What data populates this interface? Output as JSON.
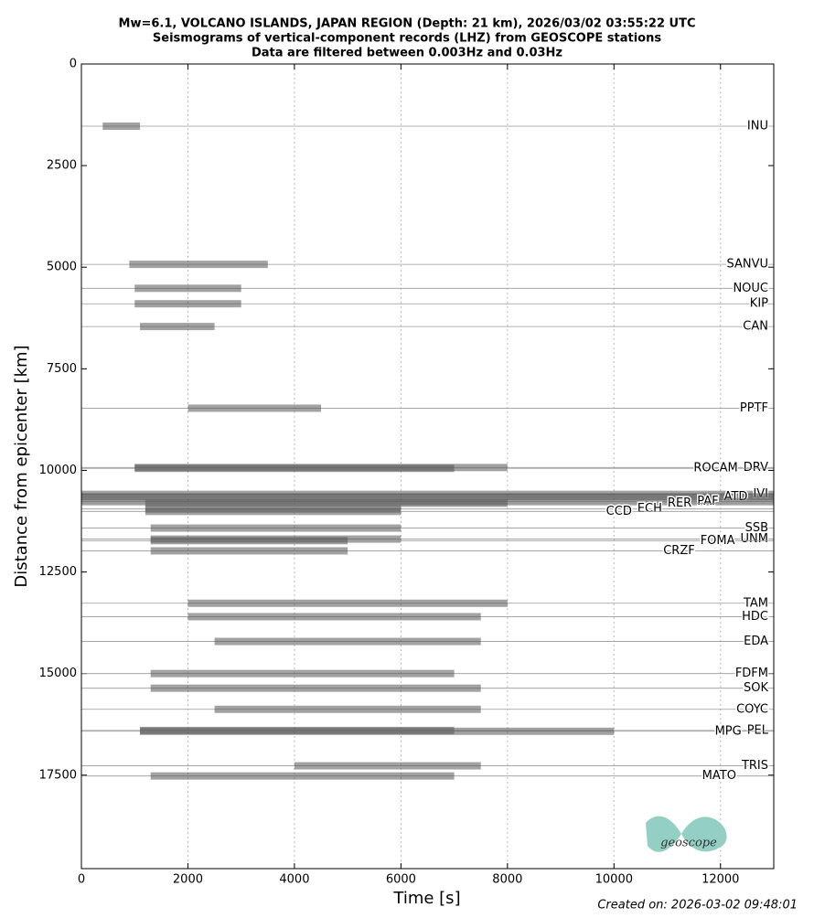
{
  "chart_data": {
    "type": "record_section",
    "title": [
      "Mw=6.1, VOLCANO ISLANDS, JAPAN REGION (Depth: 21 km), 2026/03/02 03:55:22 UTC",
      "Seismograms of vertical-component records (LHZ) from GEOSCOPE stations",
      "Data are filtered between 0.003Hz and 0.03Hz"
    ],
    "x_label": "Time [s]",
    "y_label": "Distance from epicenter [km]",
    "xlim": [
      0,
      13000
    ],
    "ylim": [
      19800,
      0
    ],
    "xticks": [
      0,
      2000,
      4000,
      6000,
      8000,
      10000,
      12000
    ],
    "yticks": [
      0,
      2500,
      5000,
      7500,
      10000,
      12500,
      15000,
      17500
    ],
    "grid": "x",
    "color": "#555555",
    "stations": [
      {
        "name": "INU",
        "distance": 1530,
        "signal": [
          400,
          1100
        ]
      },
      {
        "name": "SANVU",
        "distance": 4930,
        "signal": [
          900,
          3500
        ]
      },
      {
        "name": "NOUC",
        "distance": 5520,
        "signal": [
          1000,
          3000
        ]
      },
      {
        "name": "KIP",
        "distance": 5900,
        "signal": [
          1000,
          3000
        ]
      },
      {
        "name": "CAN",
        "distance": 6460,
        "signal": [
          1100,
          2500
        ]
      },
      {
        "name": "PPTF",
        "distance": 8470,
        "signal": [
          2000,
          4500
        ]
      },
      {
        "name": "DRV",
        "distance": 9930,
        "signal": [
          1000,
          8000
        ]
      },
      {
        "name": "ROCAM",
        "distance": 9950,
        "signal": [
          1000,
          7000
        ]
      },
      {
        "name": "IVI",
        "distance": 10590,
        "signal": [
          0,
          13000
        ]
      },
      {
        "name": "ATD",
        "distance": 10650,
        "signal": [
          0,
          13000
        ]
      },
      {
        "name": "PAF",
        "distance": 10770,
        "signal": [
          0,
          13000
        ]
      },
      {
        "name": "RER",
        "distance": 10810,
        "signal": [
          1200,
          8000
        ]
      },
      {
        "name": "ECH",
        "distance": 10950,
        "signal": [
          1200,
          6000
        ]
      },
      {
        "name": "CCD",
        "distance": 11010,
        "signal": [
          1200,
          6000
        ]
      },
      {
        "name": "SSB",
        "distance": 11420,
        "signal": [
          1300,
          6000
        ]
      },
      {
        "name": "UNM",
        "distance": 11690,
        "signal": [
          1300,
          6000
        ]
      },
      {
        "name": "FOMA",
        "distance": 11730,
        "signal": [
          1300,
          5000
        ]
      },
      {
        "name": "CRZF",
        "distance": 11980,
        "signal": [
          1300,
          5000
        ]
      },
      {
        "name": "TAM",
        "distance": 13270,
        "signal": [
          2000,
          8000
        ]
      },
      {
        "name": "HDC",
        "distance": 13600,
        "signal": [
          2000,
          7500
        ]
      },
      {
        "name": "EDA",
        "distance": 14210,
        "signal": [
          2500,
          7500
        ]
      },
      {
        "name": "FDFM",
        "distance": 15000,
        "signal": [
          1300,
          7000
        ]
      },
      {
        "name": "SOK",
        "distance": 15360,
        "signal": [
          1300,
          7500
        ]
      },
      {
        "name": "COYC",
        "distance": 15880,
        "signal": [
          2500,
          7500
        ]
      },
      {
        "name": "PEL",
        "distance": 16400,
        "signal": [
          1100,
          7000
        ]
      },
      {
        "name": "MPG",
        "distance": 16420,
        "signal": [
          1100,
          10000
        ]
      },
      {
        "name": "TRIS",
        "distance": 17270,
        "signal": [
          4000,
          7500
        ]
      },
      {
        "name": "MATO",
        "distance": 17520,
        "signal": [
          1300,
          7000
        ]
      }
    ],
    "logo": "geoscope",
    "footer": "Created on: 2026-03-02 09:48:01"
  }
}
